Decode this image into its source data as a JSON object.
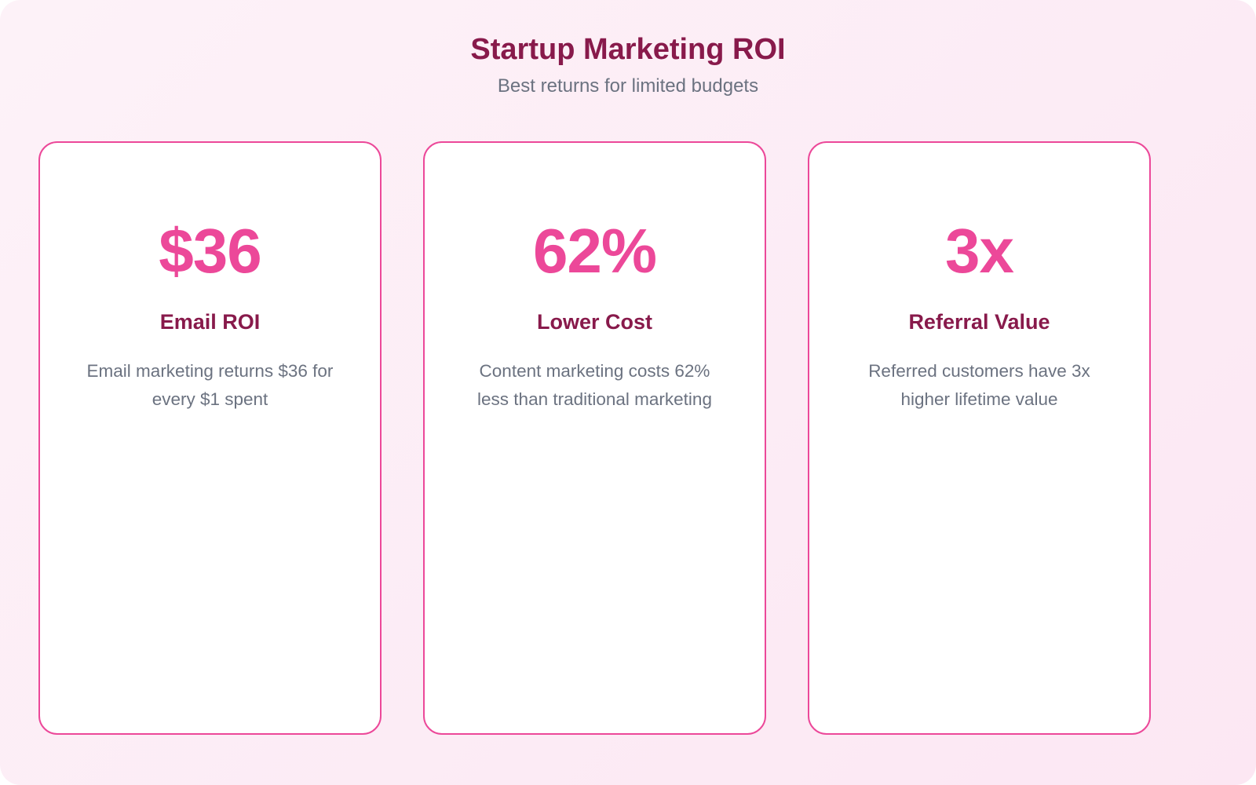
{
  "header": {
    "title": "Startup Marketing ROI",
    "subtitle": "Best returns for limited budgets"
  },
  "cards": [
    {
      "value": "$36",
      "label": "Email ROI",
      "description": "Email marketing returns $36 for every $1 spent"
    },
    {
      "value": "62%",
      "label": "Lower Cost",
      "description": "Content marketing costs 62% less than traditional marketing"
    },
    {
      "value": "3x",
      "label": "Referral Value",
      "description": "Referred customers have 3x higher lifetime value"
    }
  ]
}
